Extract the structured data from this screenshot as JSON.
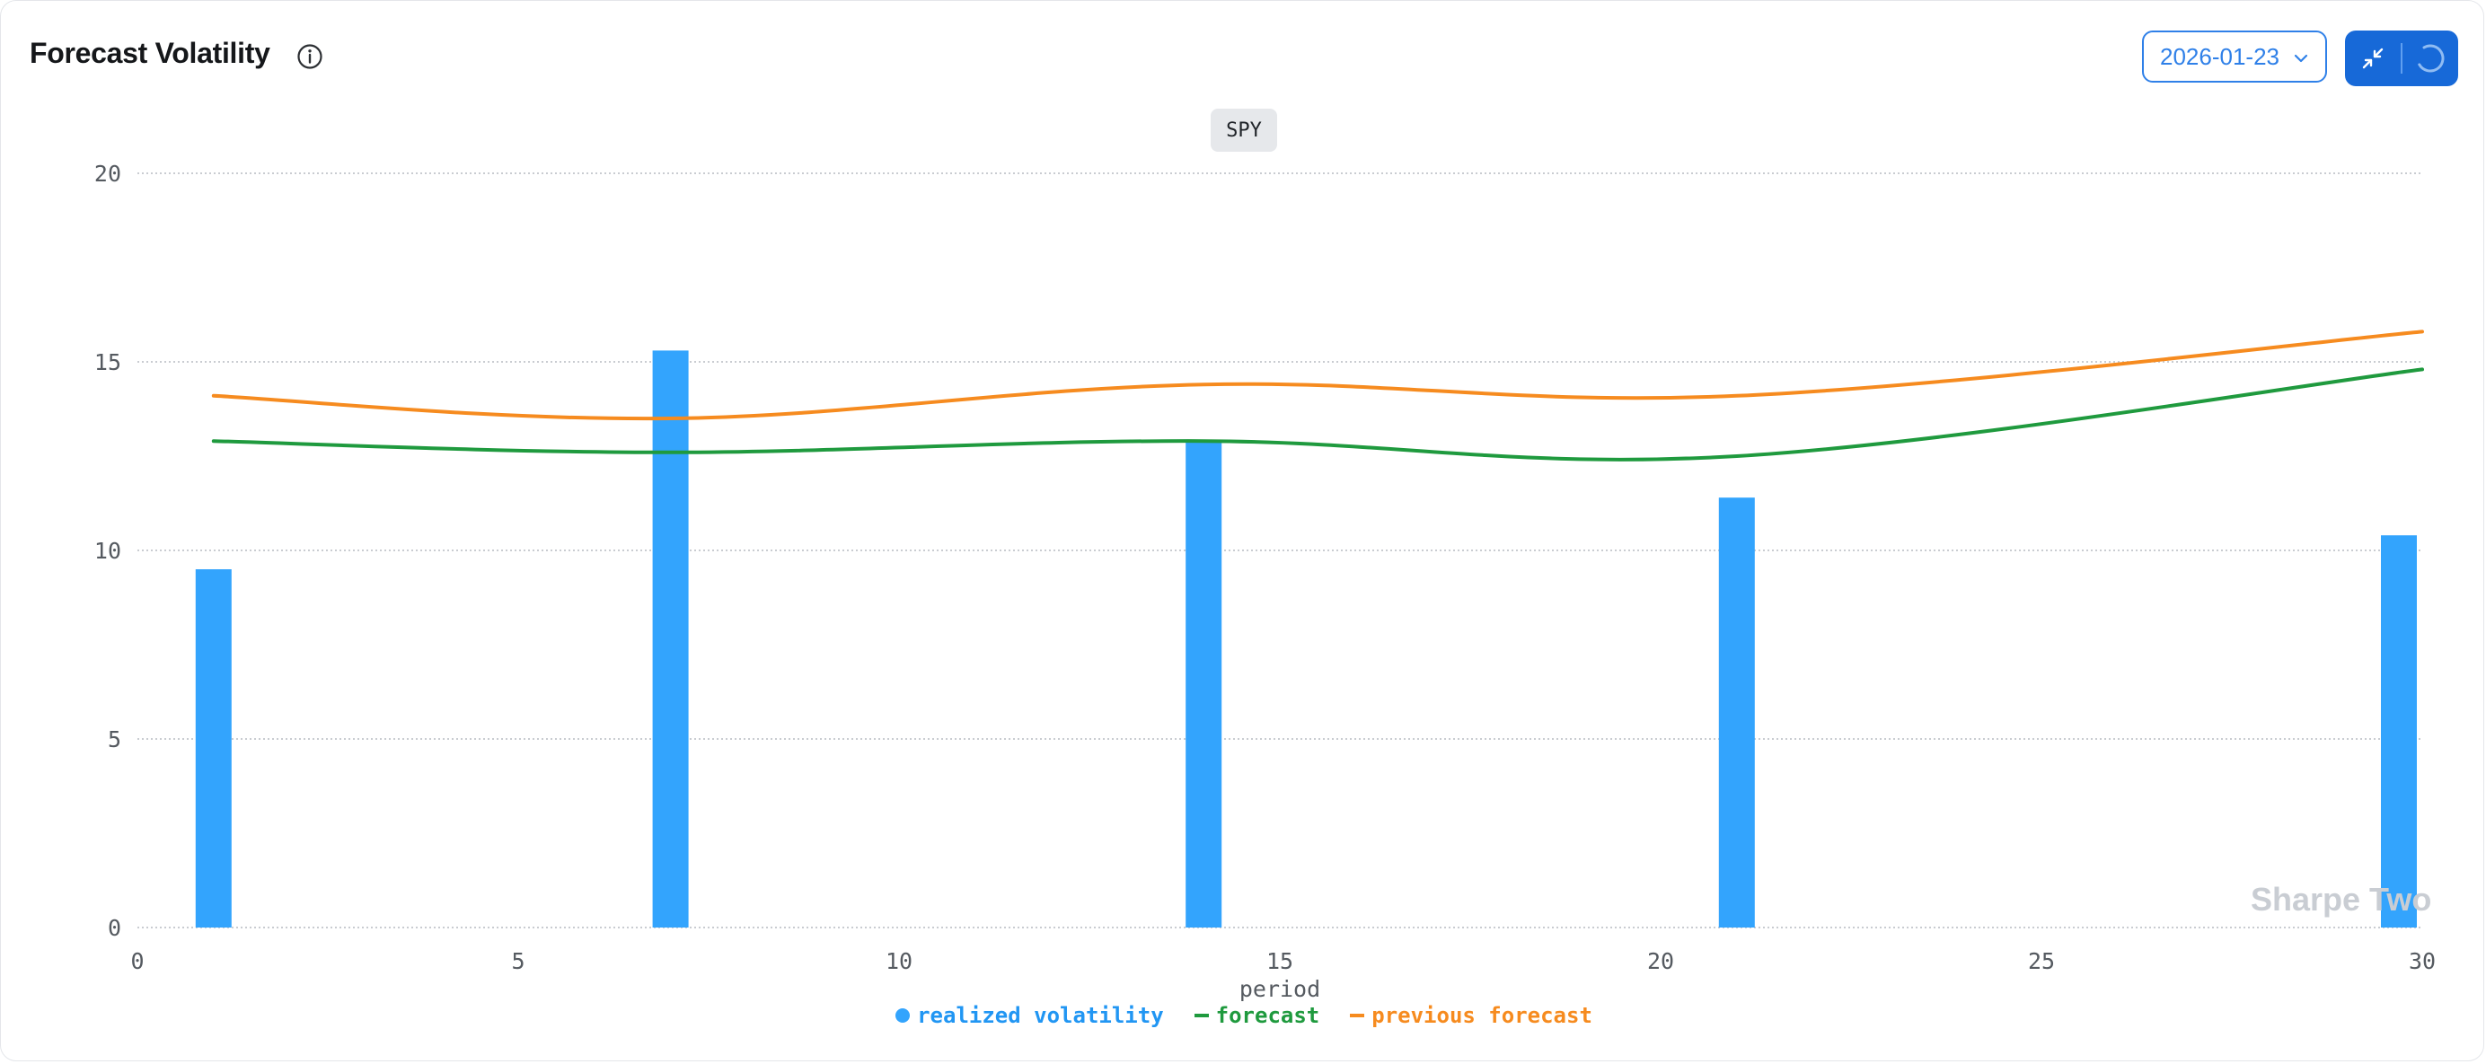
{
  "header": {
    "title": "Forecast Volatility",
    "date_value": "2026-01-23"
  },
  "colors": {
    "realized": "#33a4fd",
    "forecast": "#1f9a3e",
    "previous": "#f68b1f",
    "grid": "#c9ccd1",
    "axis_text": "#555a60"
  },
  "icons": {
    "info": "info-icon",
    "date_chevron": "chevron-down-icon",
    "collapse": "collapse-icon",
    "refresh": "spinner-icon"
  },
  "watermark": "Sharpe Two",
  "chart_data": {
    "type": "bar",
    "series_label": "SPY",
    "xlabel": "period",
    "ylabel": "",
    "xlim": [
      0,
      30
    ],
    "ylim": [
      0,
      20
    ],
    "xticks": [
      0,
      5,
      10,
      15,
      20,
      25,
      30
    ],
    "yticks": [
      0,
      5,
      10,
      15,
      20
    ],
    "grid": "horizontal-dotted",
    "legend_position": "bottom-center",
    "series": [
      {
        "name": "realized volatility",
        "type": "bar",
        "color": "#33a4fd",
        "x": [
          1,
          7,
          14,
          21,
          30
        ],
        "values": [
          9.5,
          15.3,
          12.9,
          11.4,
          10.4
        ]
      },
      {
        "name": "forecast",
        "type": "line",
        "color": "#1f9a3e",
        "x": [
          1,
          7,
          14,
          21,
          30
        ],
        "values": [
          12.9,
          12.6,
          12.9,
          12.5,
          14.8
        ]
      },
      {
        "name": "previous forecast",
        "type": "line",
        "color": "#f68b1f",
        "x": [
          1,
          7,
          14,
          21,
          30
        ],
        "values": [
          14.1,
          13.5,
          14.4,
          14.1,
          15.8
        ]
      }
    ]
  }
}
